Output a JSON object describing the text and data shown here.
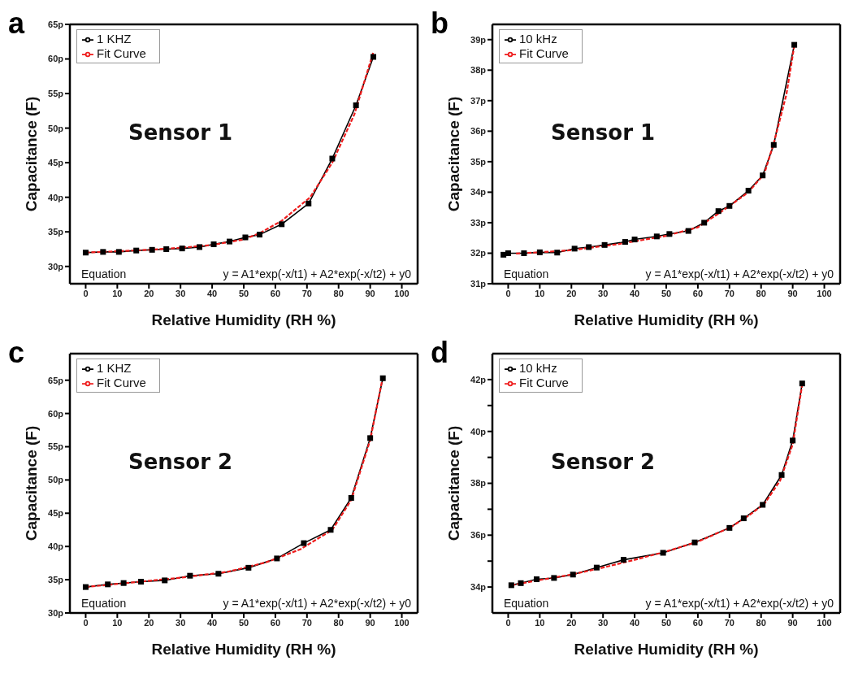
{
  "chart_data": [
    {
      "type": "line",
      "title": "a",
      "xlabel": "Relative Humidity (RH %)",
      "ylabel": "Capacitance (F)",
      "legend": "top left",
      "marker": "square",
      "annotations": [
        "Sensor 1",
        "Equation",
        "y = A1*exp(-x/t1) + A2*exp(-x/t2) + y0"
      ],
      "xlim": [
        -5,
        105
      ],
      "xticks": [
        0,
        10,
        20,
        30,
        40,
        50,
        60,
        70,
        80,
        90,
        100
      ],
      "ylim": [
        27.5,
        65
      ],
      "yticks": [
        {
          "value": 30,
          "label": "30p"
        },
        {
          "value": 35,
          "label": "35p"
        },
        {
          "value": 40,
          "label": "40p"
        },
        {
          "value": 45,
          "label": "45p"
        },
        {
          "value": 50,
          "label": "50p"
        },
        {
          "value": 55,
          "label": "55p"
        },
        {
          "value": 60,
          "label": "60p"
        },
        {
          "value": 65,
          "label": "65p"
        }
      ],
      "series": [
        {
          "name": "1 KHZ",
          "color": "#000000",
          "x": [
            0,
            5.5,
            10.5,
            16,
            21,
            25.5,
            30.5,
            36,
            40.5,
            45.5,
            50.5,
            55,
            62,
            70.5,
            78,
            85.5,
            91
          ],
          "values": [
            32,
            32.1,
            32.1,
            32.3,
            32.4,
            32.5,
            32.6,
            32.8,
            33.2,
            33.6,
            34.2,
            34.6,
            36.1,
            39.1,
            45.6,
            53.3,
            60.3
          ]
        },
        {
          "name": "Fit Curve",
          "type": "line",
          "color": "#ee1c1c",
          "marker": "none",
          "line_style": "dashed",
          "x": [
            0,
            10,
            20,
            30,
            40,
            50,
            55,
            62,
            71,
            78,
            85,
            91
          ],
          "values": [
            32,
            32.2,
            32.4,
            32.7,
            33.1,
            33.9,
            34.8,
            36.6,
            40,
            45,
            52,
            61
          ]
        }
      ]
    },
    {
      "type": "line",
      "title": "b",
      "xlabel": "Relative Humidity (RH %)",
      "ylabel": "Capacitance (F)",
      "legend": "top left",
      "marker": "square",
      "annotations": [
        "Sensor 1",
        "Equation",
        "y = A1*exp(-x/t1) + A2*exp(-x/t2) + y0"
      ],
      "xlim": [
        -5,
        105
      ],
      "xticks": [
        0,
        10,
        20,
        30,
        40,
        50,
        60,
        70,
        80,
        90,
        100
      ],
      "ylim": [
        31,
        39.5
      ],
      "yticks": [
        {
          "value": 31,
          "label": "31p"
        },
        {
          "value": 32,
          "label": "32p"
        },
        {
          "value": 33,
          "label": "33p"
        },
        {
          "value": 34,
          "label": "34p"
        },
        {
          "value": 35,
          "label": "35p"
        },
        {
          "value": 36,
          "label": "36p"
        },
        {
          "value": 37,
          "label": "37p"
        },
        {
          "value": 38,
          "label": "38p"
        },
        {
          "value": 39,
          "label": "39p"
        }
      ],
      "series": [
        {
          "name": "10 kHz",
          "color": "#000000",
          "x": [
            -1.5,
            0,
            5,
            10,
            15.5,
            21,
            25.5,
            30.5,
            37,
            40,
            47,
            51,
            57,
            62,
            66.5,
            70,
            76,
            80.5,
            84,
            90.5
          ],
          "values": [
            31.95,
            32,
            32,
            32.03,
            32.02,
            32.15,
            32.2,
            32.27,
            32.37,
            32.45,
            32.55,
            32.63,
            32.73,
            33,
            33.38,
            33.55,
            34.05,
            34.55,
            35.55,
            38.83
          ]
        },
        {
          "name": "Fit Curve",
          "type": "line",
          "color": "#ee1c1c",
          "marker": "none",
          "line_style": "dashed",
          "x": [
            2.5,
            10,
            20,
            35,
            50,
            60,
            68,
            76,
            81,
            84,
            88,
            90.5
          ],
          "values": [
            31.99,
            32.03,
            32.1,
            32.3,
            32.57,
            32.85,
            33.4,
            34,
            34.6,
            35.6,
            37.2,
            38.8
          ]
        }
      ]
    },
    {
      "type": "line",
      "title": "c",
      "xlabel": "Relative Humidity (RH %)",
      "ylabel": "Capacitance (F)",
      "legend": "top left",
      "marker": "square",
      "annotations": [
        "Sensor 2",
        "Equation",
        "y = A1*exp(-x/t1) + A2*exp(-x/t2) + y0"
      ],
      "xlim": [
        -5,
        105
      ],
      "xticks": [
        0,
        10,
        20,
        30,
        40,
        50,
        60,
        70,
        80,
        90,
        100
      ],
      "ylim": [
        30,
        69
      ],
      "yticks": [
        {
          "value": 30,
          "label": "30p"
        },
        {
          "value": 35,
          "label": "35p"
        },
        {
          "value": 40,
          "label": "40p"
        },
        {
          "value": 45,
          "label": "45p"
        },
        {
          "value": 50,
          "label": "50p"
        },
        {
          "value": 55,
          "label": "55p"
        },
        {
          "value": 60,
          "label": "60p"
        },
        {
          "value": 65,
          "label": "65p"
        }
      ],
      "series": [
        {
          "name": "1 KHZ",
          "color": "#000000",
          "x": [
            0,
            7,
            12,
            17.5,
            25,
            33,
            42,
            51.5,
            60.5,
            69,
            77.5,
            84,
            90,
            94
          ],
          "values": [
            33.9,
            34.3,
            34.5,
            34.7,
            34.9,
            35.6,
            35.9,
            36.8,
            38.2,
            40.5,
            42.5,
            47.3,
            56.3,
            65.3
          ]
        },
        {
          "name": "Fit Curve",
          "type": "line",
          "color": "#ee1c1c",
          "marker": "none",
          "line_style": "dashed",
          "x": [
            0,
            15,
            30,
            45,
            57,
            68,
            78,
            84,
            90,
            94
          ],
          "values": [
            33.9,
            34.6,
            35.3,
            36.2,
            37.6,
            39.6,
            42.5,
            47,
            56,
            65.5
          ]
        }
      ]
    },
    {
      "type": "line",
      "title": "d",
      "xlabel": "Relative Humidity (RH %)",
      "ylabel": "Capacitance (F)",
      "legend": "top left",
      "marker": "square",
      "annotations": [
        "Sensor 2",
        "Equation",
        "y = A1*exp(-x/t1) + A2*exp(-x/t2) + y0"
      ],
      "xlim": [
        -5,
        105
      ],
      "xticks": [
        0,
        10,
        20,
        30,
        40,
        50,
        60,
        70,
        80,
        90,
        100
      ],
      "ylim": [
        33,
        43
      ],
      "yticks": [
        {
          "value": 34,
          "label": "34p"
        },
        {
          "value": 35,
          "label": null
        },
        {
          "value": 36,
          "label": "36p"
        },
        {
          "value": 37,
          "label": null
        },
        {
          "value": 38,
          "label": "38p"
        },
        {
          "value": 39,
          "label": null
        },
        {
          "value": 40,
          "label": "40p"
        },
        {
          "value": 41,
          "label": null
        },
        {
          "value": 42,
          "label": "42p"
        }
      ],
      "series": [
        {
          "name": "10 kHz",
          "color": "#000000",
          "x": [
            1,
            4,
            9,
            14.5,
            20.5,
            28,
            36.5,
            49,
            59,
            70,
            74.5,
            80.5,
            86.5,
            90,
            93
          ],
          "values": [
            34.07,
            34.15,
            34.3,
            34.35,
            34.48,
            34.75,
            35.05,
            35.32,
            35.72,
            36.28,
            36.65,
            37.17,
            38.32,
            39.65,
            41.85
          ]
        },
        {
          "name": "Fit Curve",
          "type": "line",
          "color": "#ee1c1c",
          "marker": "none",
          "line_style": "dashed",
          "x": [
            1,
            10,
            20,
            30,
            40,
            50,
            60,
            70,
            76,
            81,
            86,
            90,
            93
          ],
          "values": [
            34.07,
            34.27,
            34.48,
            34.75,
            35.05,
            35.37,
            35.75,
            36.28,
            36.75,
            37.2,
            38.1,
            39.5,
            41.8
          ]
        }
      ]
    }
  ]
}
